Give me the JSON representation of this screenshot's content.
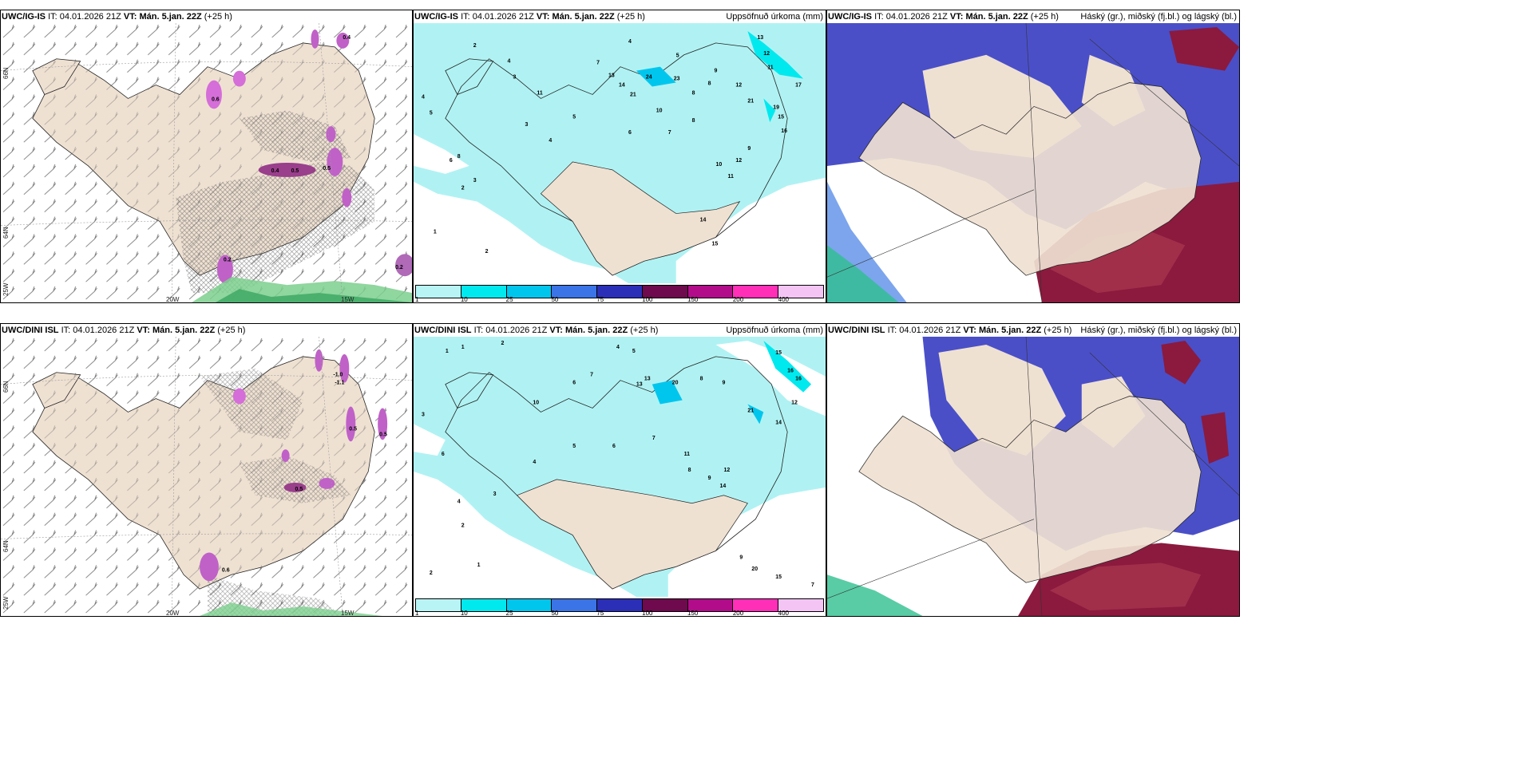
{
  "panels": {
    "p1": {
      "model": "UWC/IG-IS",
      "it_label": "IT:",
      "it": "04.01.2026 21Z",
      "vt_label": "VT:",
      "vt": "Mán. 5.jan. 22Z",
      "lead": "(+25 h)",
      "right": ""
    },
    "p2": {
      "model": "UWC/IG-IS",
      "it_label": "IT:",
      "it": "04.01.2026 21Z",
      "vt_label": "VT:",
      "vt": "Mán. 5.jan. 22Z",
      "lead": "(+25 h)",
      "right": "Uppsöfnuð úrkoma (mm)"
    },
    "p3": {
      "model": "UWC/IG-IS",
      "it_label": "IT:",
      "it": "04.01.2026 21Z",
      "vt_label": "VT:",
      "vt": "Mán. 5.jan. 22Z",
      "lead": "(+25 h)",
      "right": "Háský (gr.), miðský (fj.bl.) og lágský (bl.)"
    },
    "p4": {
      "model": "UWC/DINI ISL",
      "it_label": "IT:",
      "it": "04.01.2026 21Z",
      "vt_label": "VT:",
      "vt": "Mán. 5.jan. 22Z",
      "lead": "(+25 h)",
      "right": ""
    },
    "p5": {
      "model": "UWC/DINI ISL",
      "it_label": "IT:",
      "it": "04.01.2026 21Z",
      "vt_label": "VT:",
      "vt": "Mán. 5.jan. 22Z",
      "lead": "(+25 h)",
      "right": "Uppsöfnuð úrkoma (mm)"
    },
    "p6": {
      "model": "UWC/DINI ISL",
      "it_label": "IT:",
      "it": "04.01.2026 21Z",
      "vt_label": "VT:",
      "vt": "Mán. 5.jan. 22Z",
      "lead": "(+25 h)",
      "right": "Háský (gr.), miðský (fj.bl.) og lágský (bl.)"
    }
  },
  "axis_labels": {
    "lat66": "66N",
    "lat64": "64N",
    "lon25": "25W",
    "lon20": "20W",
    "lon15": "15W"
  },
  "legend": {
    "ticks": [
      "1",
      "10",
      "25",
      "50",
      "75",
      "100",
      "150",
      "200",
      "400"
    ],
    "colors": [
      "#b8f4f6",
      "#00e9ef",
      "#00c6ee",
      "#3a74e6",
      "#2b2fb8",
      "#6e0a4d",
      "#b20c8a",
      "#ff2fb8",
      "#f4c4f4"
    ]
  },
  "colors": {
    "land": "#efe1d2",
    "sea_precip": "#b0f2f3",
    "high_cloud": "#4a4fc8",
    "mid_cloud": "#5b8ee8",
    "low_cloud": "#8b1a3e",
    "snow": "#d070d0"
  },
  "precip_numbers_top": [
    "2",
    "4",
    "4",
    "5",
    "3",
    "7",
    "13",
    "11",
    "23",
    "21",
    "14",
    "24",
    "10",
    "8",
    "8",
    "9",
    "12",
    "11",
    "21",
    "19",
    "16",
    "15",
    "17",
    "13",
    "12",
    "8",
    "7",
    "6",
    "5",
    "4",
    "3",
    "2",
    "1",
    "2",
    "3",
    "4",
    "6",
    "5",
    "8",
    "10",
    "11",
    "9",
    "12",
    "14",
    "15"
  ],
  "precip_numbers_bottom": [
    "1",
    "1",
    "2",
    "3",
    "4",
    "5",
    "6",
    "7",
    "8",
    "9",
    "10",
    "12",
    "13",
    "14",
    "15",
    "16",
    "20",
    "21",
    "11",
    "9",
    "8",
    "7",
    "6",
    "5",
    "4",
    "3",
    "2",
    "1",
    "2",
    "4",
    "6",
    "9",
    "12",
    "13",
    "14",
    "16",
    "20",
    "15",
    "7"
  ],
  "contour_labels_top": [
    "0.6",
    "0.4",
    "0.5",
    "0.5",
    "0.4",
    "0.2",
    "0.2"
  ],
  "contour_labels_bottom": [
    "-1.0",
    "-1.1",
    "0.5",
    "0.5",
    "0.6",
    "0.5"
  ]
}
